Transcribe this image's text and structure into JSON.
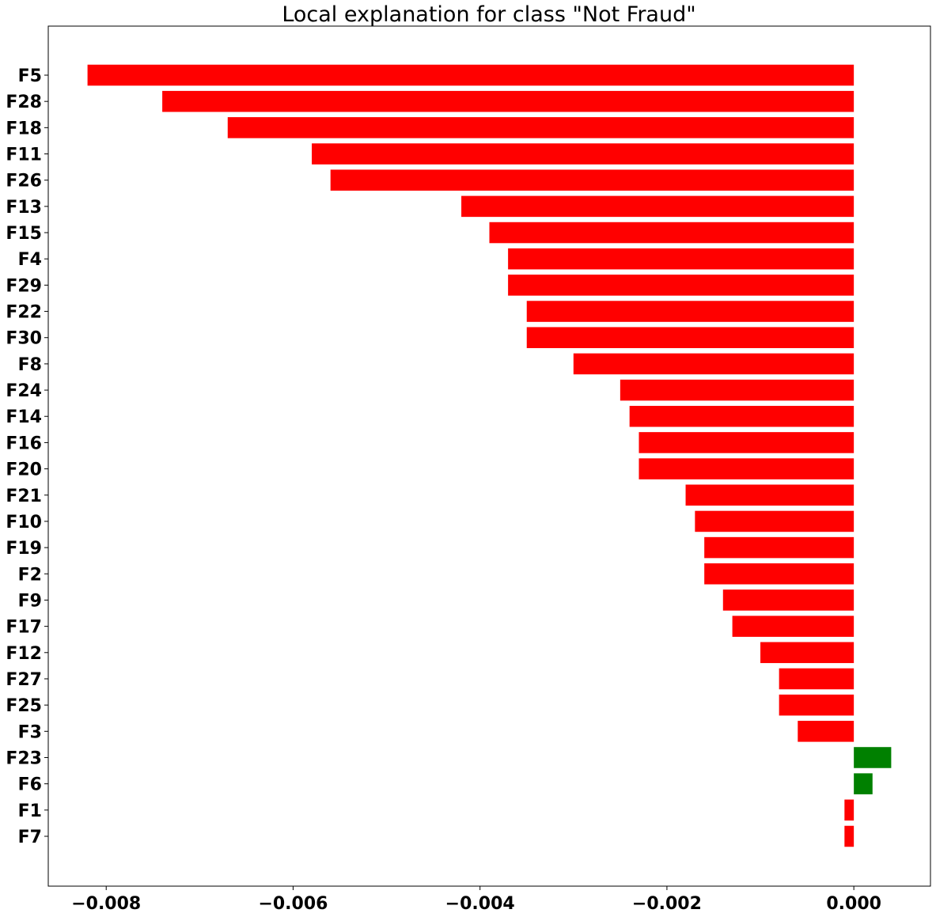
{
  "chart_data": {
    "type": "bar",
    "orientation": "horizontal",
    "title": "Local explanation for class \"Not Fraud\"",
    "xlabel": "",
    "ylabel": "",
    "xlim": [
      -0.00862,
      0.00082
    ],
    "grid": false,
    "legend": "none",
    "colors": {
      "negative": "#ff0000",
      "positive": "#008000"
    },
    "xticks": [
      {
        "value": -0.008,
        "label": "−0.008"
      },
      {
        "value": -0.006,
        "label": "−0.006"
      },
      {
        "value": -0.004,
        "label": "−0.004"
      },
      {
        "value": -0.002,
        "label": "−0.002"
      },
      {
        "value": 0.0,
        "label": "0.000"
      }
    ],
    "categories": [
      "F5",
      "F28",
      "F18",
      "F11",
      "F26",
      "F13",
      "F15",
      "F4",
      "F29",
      "F22",
      "F30",
      "F8",
      "F24",
      "F14",
      "F16",
      "F20",
      "F21",
      "F10",
      "F19",
      "F2",
      "F9",
      "F17",
      "F12",
      "F27",
      "F25",
      "F3",
      "F23",
      "F6",
      "F1",
      "F7"
    ],
    "values": [
      -0.0082,
      -0.0074,
      -0.0067,
      -0.0058,
      -0.0056,
      -0.0042,
      -0.0039,
      -0.0037,
      -0.0037,
      -0.0035,
      -0.0035,
      -0.003,
      -0.0025,
      -0.0024,
      -0.0023,
      -0.0023,
      -0.0018,
      -0.0017,
      -0.0016,
      -0.0016,
      -0.0014,
      -0.0013,
      -0.001,
      -0.0008,
      -0.0008,
      -0.0006,
      0.0004,
      0.0002,
      -0.0001,
      -0.0001
    ]
  }
}
